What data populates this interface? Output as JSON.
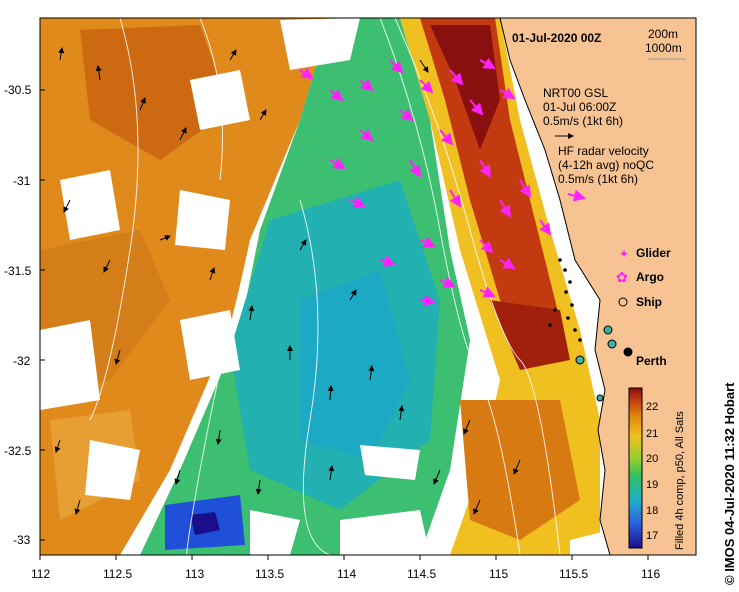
{
  "map": {
    "date_title": "01-Jul-2020 00Z",
    "scale": {
      "depth1": "200m",
      "depth2": "1000m"
    },
    "gsl": {
      "line1": "NRT00 GSL",
      "line2": "01-Jul 06:00Z",
      "line3": "0.5m/s (1kt 6h)"
    },
    "hf": {
      "line1": "HF radar velocity",
      "line2": "(4-12h avg) noQC",
      "line3": "0.5m/s (1kt 6h)"
    },
    "legend": {
      "glider": "Glider",
      "argo": "Argo",
      "ship": "Ship"
    },
    "city": "Perth",
    "x_ticks": [
      "112",
      "112.5",
      "113",
      "113.5",
      "114",
      "114.5",
      "115",
      "115.5",
      "116"
    ],
    "y_ticks": [
      "-30.5",
      "-31",
      "-31.5",
      "-32",
      "-32.5",
      "-33"
    ],
    "colorbar": {
      "ticks": [
        "22",
        "21",
        "20",
        "19",
        "18",
        "17"
      ],
      "label": "Filled 4h comp, p50, All Sats"
    },
    "credit": "© IMOS 04-Jul-2020 11:32 Hobart",
    "colors": {
      "land": "#f7c393",
      "hf_arrow": "#ff22ff",
      "coast": "#000000"
    }
  }
}
